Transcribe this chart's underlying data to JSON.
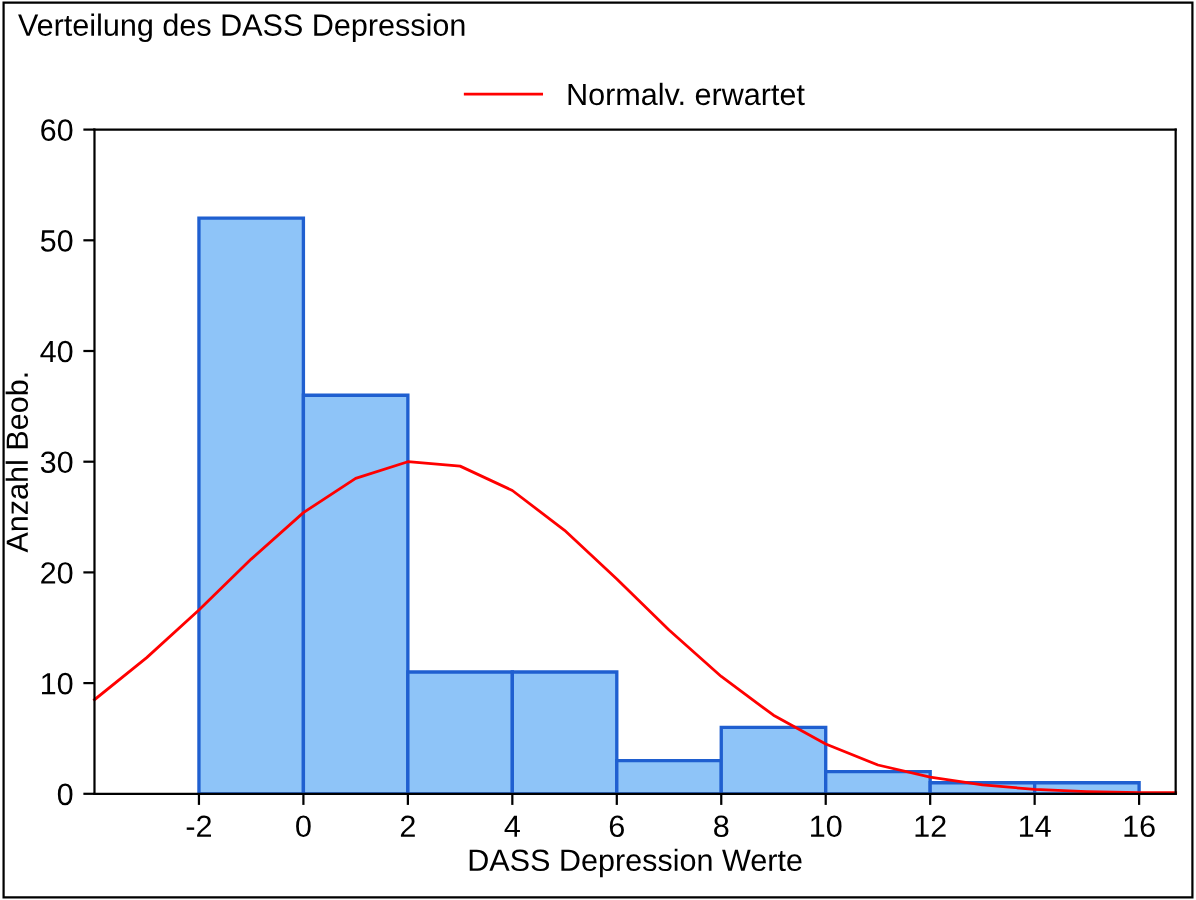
{
  "chart_data": {
    "type": "histogram",
    "title": "Verteilung des DASS Depression",
    "xlabel": "DASS Depression Werte",
    "ylabel": "Anzahl Beob.",
    "bins": [
      -2,
      0,
      2,
      4,
      6,
      8,
      10,
      12,
      14,
      16
    ],
    "values": [
      52,
      36,
      11,
      11,
      3,
      6,
      2,
      1,
      1
    ],
    "color": "#8ec4f8",
    "series": [
      {
        "type": "line",
        "name": "Normalv. erwartet",
        "color": "#ff0000",
        "x": [
          -4,
          -3,
          -2,
          -1,
          0,
          1,
          2,
          3,
          4,
          5,
          6,
          7,
          8,
          9,
          10,
          11,
          12,
          13,
          14,
          15,
          16,
          16.7
        ],
        "values": [
          8.5,
          12.3,
          16.6,
          21.2,
          25.4,
          28.5,
          30,
          29.6,
          27.4,
          23.8,
          19.4,
          14.8,
          10.6,
          7.1,
          4.5,
          2.6,
          1.5,
          0.8,
          0.4,
          0.2,
          0.1,
          0.1
        ]
      }
    ],
    "xlim": [
      -4,
      16.7
    ],
    "xticks": [
      -2,
      0,
      2,
      4,
      6,
      8,
      10,
      12,
      14,
      16
    ],
    "ylim": [
      0,
      60
    ],
    "yticks": [
      0,
      10,
      20,
      30,
      40,
      50,
      60
    ],
    "grid": false,
    "legend": "top",
    "line_style": "solid",
    "marker": "none"
  }
}
